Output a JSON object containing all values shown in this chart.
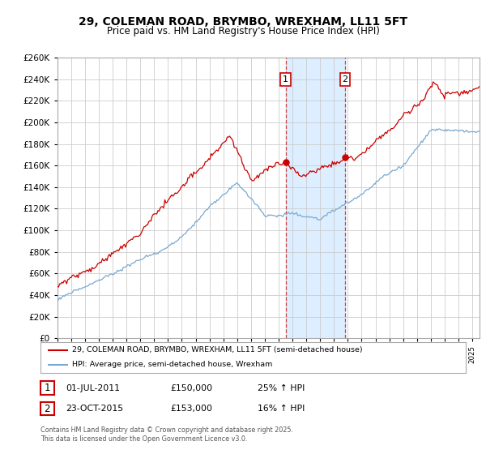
{
  "title": "29, COLEMAN ROAD, BRYMBO, WREXHAM, LL11 5FT",
  "subtitle": "Price paid vs. HM Land Registry's House Price Index (HPI)",
  "legend_line1": "29, COLEMAN ROAD, BRYMBO, WREXHAM, LL11 5FT (semi-detached house)",
  "legend_line2": "HPI: Average price, semi-detached house, Wrexham",
  "property_color": "#cc0000",
  "hpi_color": "#7aa8d0",
  "annotation1_date": "01-JUL-2011",
  "annotation1_price": "£150,000",
  "annotation1_change": "25% ↑ HPI",
  "annotation1_year": 2011.5,
  "annotation2_date": "23-OCT-2015",
  "annotation2_price": "£153,000",
  "annotation2_change": "16% ↑ HPI",
  "annotation2_year": 2015.8,
  "ylim": [
    0,
    260000
  ],
  "ytick_step": 20000,
  "footnote": "Contains HM Land Registry data © Crown copyright and database right 2025.\nThis data is licensed under the Open Government Licence v3.0.",
  "background_color": "#ffffff",
  "grid_color": "#cccccc",
  "highlight_color": "#dceeff"
}
